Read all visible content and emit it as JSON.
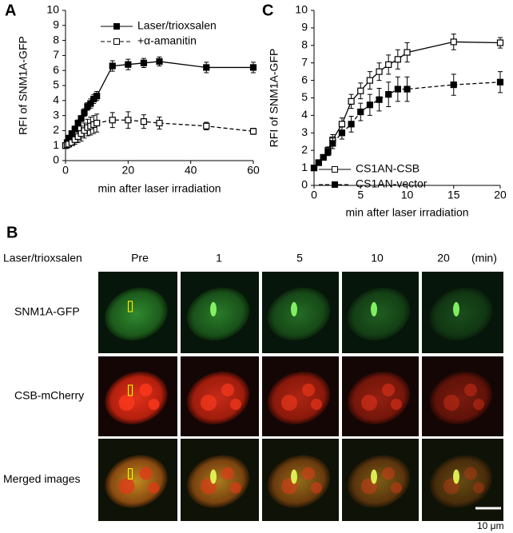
{
  "chart_data": [
    {
      "type": "line",
      "panel": "A",
      "xlabel": "min after laser irradiation",
      "ylabel": "RFI of SNM1A-GFP",
      "xlim": [
        0,
        60
      ],
      "xticks": [
        0,
        20,
        40,
        60
      ],
      "ylim": [
        0,
        10
      ],
      "yticks": [
        0,
        1,
        2,
        3,
        4,
        5,
        6,
        7,
        8,
        9,
        10
      ],
      "legend": "upper left",
      "series": [
        {
          "name": "Laser/trioxsalen",
          "color": "#000000",
          "marker": "square-filled",
          "linestyle": "solid",
          "x": [
            0,
            0.5,
            1,
            2,
            3,
            4,
            5,
            6,
            7,
            8,
            9,
            10,
            15,
            20,
            25,
            30,
            45,
            60
          ],
          "values": [
            1.0,
            1.2,
            1.5,
            1.8,
            2.1,
            2.5,
            2.8,
            3.2,
            3.6,
            3.8,
            4.1,
            4.3,
            6.3,
            6.4,
            6.5,
            6.6,
            6.2,
            6.2
          ],
          "errors": [
            0.05,
            0.1,
            0.1,
            0.15,
            0.2,
            0.2,
            0.2,
            0.25,
            0.25,
            0.3,
            0.3,
            0.3,
            0.35,
            0.35,
            0.3,
            0.3,
            0.35,
            0.35
          ]
        },
        {
          "name": "+α-amanitin",
          "color": "#000000",
          "marker": "square-open",
          "linestyle": "dashed",
          "x": [
            0,
            0.5,
            1,
            2,
            3,
            4,
            5,
            6,
            7,
            8,
            9,
            10,
            15,
            20,
            25,
            30,
            45,
            60
          ],
          "values": [
            1.0,
            1.05,
            1.1,
            1.2,
            1.4,
            1.6,
            1.8,
            2.0,
            2.2,
            2.3,
            2.4,
            2.5,
            2.7,
            2.7,
            2.6,
            2.5,
            2.3,
            1.95
          ],
          "errors": [
            0.05,
            0.1,
            0.15,
            0.2,
            0.3,
            0.4,
            0.5,
            0.5,
            0.55,
            0.6,
            0.6,
            0.6,
            0.5,
            0.55,
            0.45,
            0.4,
            0.25,
            0.2
          ]
        }
      ]
    },
    {
      "type": "line",
      "panel": "C",
      "xlabel": "min after laser irradiation",
      "ylabel": "RFI of SNM1A-GFP",
      "xlim": [
        0,
        20
      ],
      "xticks": [
        0,
        5,
        10,
        15,
        20
      ],
      "ylim": [
        0,
        10
      ],
      "yticks": [
        0,
        1,
        2,
        3,
        4,
        5,
        6,
        7,
        8,
        9,
        10
      ],
      "legend": "lower right",
      "series": [
        {
          "name": "CS1AN-CSB",
          "color": "#000000",
          "marker": "square-open",
          "linestyle": "solid",
          "x": [
            0,
            0.5,
            1,
            1.5,
            2,
            3,
            4,
            5,
            6,
            7,
            8,
            9,
            10,
            15,
            20
          ],
          "values": [
            1.0,
            1.3,
            1.6,
            2.0,
            2.6,
            3.5,
            4.8,
            5.4,
            6.0,
            6.5,
            6.9,
            7.2,
            7.6,
            8.2,
            8.15
          ],
          "errors": [
            0.05,
            0.1,
            0.15,
            0.2,
            0.3,
            0.35,
            0.4,
            0.45,
            0.5,
            0.5,
            0.55,
            0.55,
            0.55,
            0.45,
            0.3
          ]
        },
        {
          "name": "CS1AN-vector",
          "color": "#000000",
          "marker": "square-filled",
          "linestyle": "dashed",
          "x": [
            0,
            0.5,
            1,
            1.5,
            2,
            3,
            4,
            5,
            6,
            7,
            8,
            9,
            10,
            15,
            20
          ],
          "values": [
            1.0,
            1.3,
            1.6,
            1.9,
            2.4,
            3.0,
            3.5,
            4.2,
            4.6,
            4.9,
            5.2,
            5.5,
            5.5,
            5.75,
            5.9
          ],
          "errors": [
            0.05,
            0.1,
            0.15,
            0.2,
            0.3,
            0.35,
            0.45,
            0.5,
            0.6,
            0.65,
            0.7,
            0.7,
            0.7,
            0.6,
            0.6
          ]
        }
      ]
    }
  ],
  "panel_b": {
    "label": "B",
    "condition": "Laser/trioxsalen",
    "timepoints": [
      "Pre",
      "1",
      "5",
      "10",
      "20"
    ],
    "unit": "(min)",
    "rows": [
      "SNM1A-GFP",
      "CSB-mCherry",
      "Merged images"
    ],
    "scale_bar": "10 μm"
  }
}
